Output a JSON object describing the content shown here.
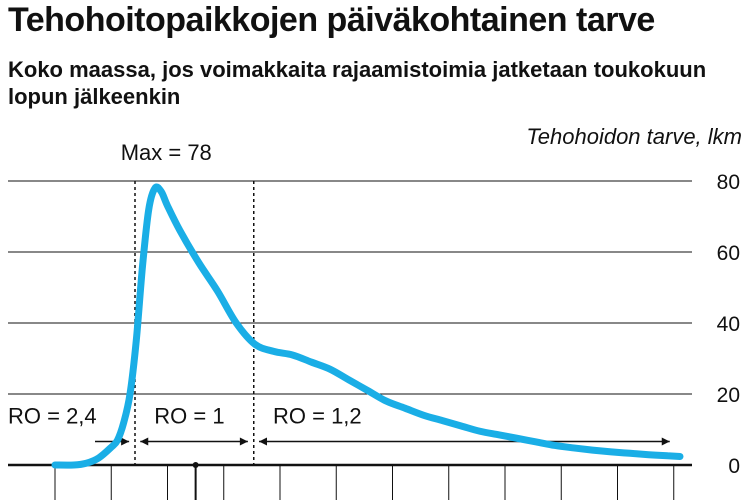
{
  "title": "Tehohoitopaikkojen päiväkohtainen tarve",
  "subtitle": "Koko maassa, jos voimakkaita rajaamistoimia jatketaan toukokuun lopun jälkeenkin",
  "ylabel": "Tehohoidon tarve, lkm",
  "colors": {
    "line": "#1aaee6",
    "axis": "#111111",
    "grid": "#111111"
  },
  "chart_data": {
    "type": "line",
    "title": "Tehohoitopaikkojen päiväkohtainen tarve",
    "subtitle": "Koko maassa, jos voimakkaita rajaamistoimia jatketaan toukokuun lopun jälkeenkin",
    "ylabel": "Tehohoidon tarve, lkm",
    "xlabel": "",
    "ylim": [
      0,
      80
    ],
    "yticks": [
      0,
      20,
      40,
      60,
      80
    ],
    "y_axis_side": "right",
    "grid": "horizontal",
    "x_range": [
      0,
      100
    ],
    "x_ticks": [
      0,
      9,
      18,
      27,
      36,
      45,
      54,
      63,
      72,
      81,
      90,
      99
    ],
    "series": [
      {
        "x": [
          0,
          3,
          5,
          7,
          9,
          10,
          11,
          12,
          13,
          14,
          15,
          16,
          17,
          18,
          20,
          23,
          26,
          29,
          32,
          35,
          38,
          41,
          44,
          47,
          50,
          53,
          56,
          59,
          62,
          65,
          68,
          71,
          74,
          77,
          80,
          83,
          86,
          89,
          92,
          95,
          98,
          100
        ],
        "y": [
          0,
          0,
          0.5,
          2,
          5,
          7,
          12,
          20,
          35,
          56,
          72,
          78,
          77,
          73,
          66,
          57,
          49,
          40,
          34,
          32,
          31,
          29,
          27,
          24,
          21,
          18,
          16,
          14,
          12.5,
          11,
          9.5,
          8.5,
          7.5,
          6.5,
          5.5,
          4.8,
          4.2,
          3.7,
          3.3,
          2.9,
          2.6,
          2.4
        ]
      }
    ],
    "annotations": [
      {
        "text": "Max = 78",
        "x": 21,
        "y": 78
      },
      {
        "text": "RO = 2,4",
        "x_from": 0,
        "x_to": 12.5,
        "y": 10
      },
      {
        "text": "RO = 1",
        "x_from": 13,
        "x_to": 31.5,
        "y": 10
      },
      {
        "text": "RO = 1,2",
        "x_from": 32,
        "x_to": 99,
        "y": 10
      }
    ],
    "dividers_x": [
      12.8,
      31.8
    ],
    "marker_x": 22.5
  }
}
